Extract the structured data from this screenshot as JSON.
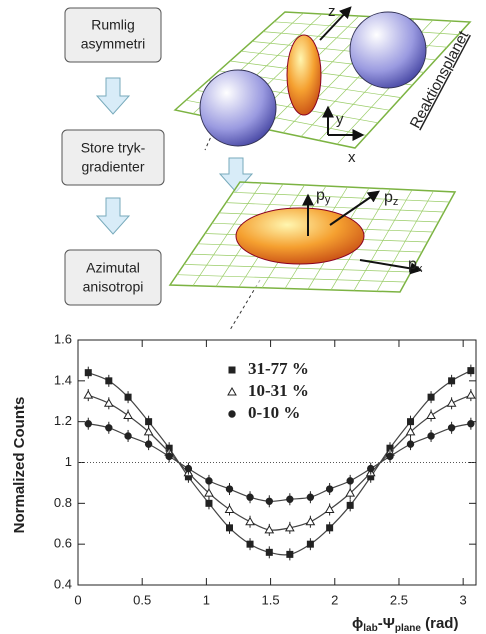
{
  "diagram": {
    "boxes": [
      [
        "Rumlig",
        "asymmetri"
      ],
      [
        "Store tryk-",
        "gradienter"
      ],
      [
        "Azimutal",
        "anisotropi"
      ]
    ],
    "plane_label": "Reaktionsplanet",
    "axis_z": "z",
    "axis_y": "y",
    "axis_x": "x",
    "momentum": [
      {
        "text": "p",
        "sub": "y"
      },
      {
        "text": "p",
        "sub": "z"
      },
      {
        "text": "p",
        "sub": "x"
      }
    ]
  },
  "chart_data": {
    "type": "scatter",
    "y_label": "Normalized Counts",
    "x_label": [
      {
        "text": "ϕ",
        "sub": "lab"
      },
      {
        "text": "-Ψ",
        "sub": "plane"
      },
      {
        "text": " (rad)",
        "sub": ""
      }
    ],
    "x": [
      0.08,
      0.24,
      0.39,
      0.55,
      0.71,
      0.86,
      1.02,
      1.18,
      1.34,
      1.49,
      1.65,
      1.81,
      1.96,
      2.12,
      2.28,
      2.43,
      2.59,
      2.75,
      2.91,
      3.06
    ],
    "series": [
      {
        "name": "31-77 %",
        "marker": "square",
        "color": "#222",
        "values": [
          1.44,
          1.4,
          1.32,
          1.2,
          1.07,
          0.93,
          0.8,
          0.68,
          0.6,
          0.56,
          0.55,
          0.6,
          0.68,
          0.79,
          0.93,
          1.07,
          1.2,
          1.32,
          1.4,
          1.45
        ]
      },
      {
        "name": "10-31 %",
        "marker": "triangle",
        "color": "#222",
        "values": [
          1.33,
          1.29,
          1.23,
          1.15,
          1.05,
          0.95,
          0.85,
          0.77,
          0.71,
          0.67,
          0.68,
          0.71,
          0.77,
          0.85,
          0.95,
          1.05,
          1.15,
          1.23,
          1.29,
          1.33
        ]
      },
      {
        "name": "0-10 %",
        "marker": "circle",
        "color": "#222",
        "values": [
          1.19,
          1.17,
          1.13,
          1.09,
          1.03,
          0.97,
          0.91,
          0.87,
          0.83,
          0.81,
          0.82,
          0.83,
          0.87,
          0.91,
          0.97,
          1.03,
          1.09,
          1.13,
          1.17,
          1.19
        ]
      }
    ],
    "reference_line": 1,
    "xlim": [
      0,
      3.1
    ],
    "ylim": [
      0.4,
      1.6
    ],
    "xticks": [
      0,
      0.5,
      1,
      1.5,
      2,
      2.5,
      3
    ],
    "yticks": [
      0.4,
      0.6,
      0.8,
      1,
      1.2,
      1.4,
      1.6
    ]
  }
}
